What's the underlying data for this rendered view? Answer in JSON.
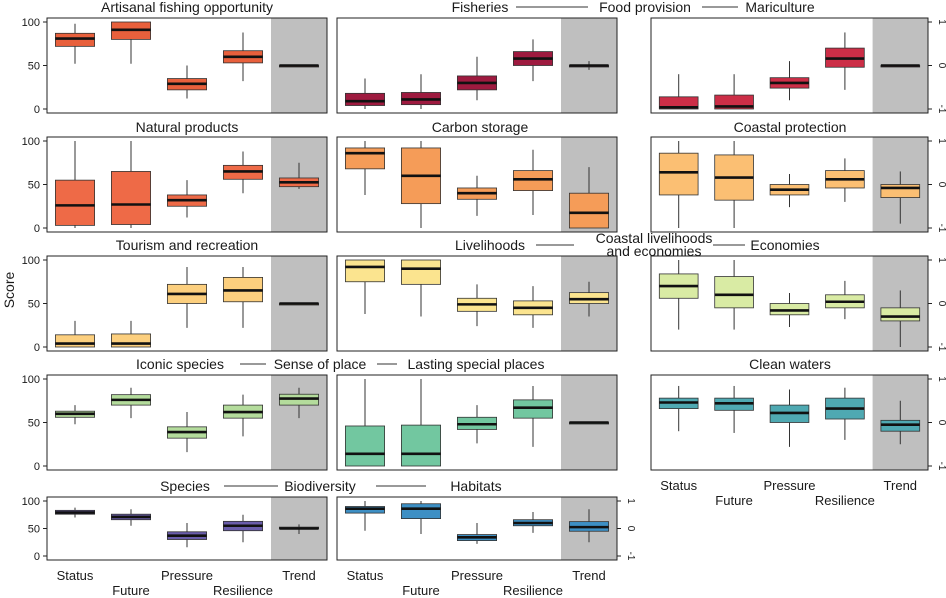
{
  "ylabel": "Score",
  "categories": [
    "Status",
    "Future",
    "Pressure",
    "Resilience",
    "Trend"
  ],
  "chart_data": [
    {
      "type": "box",
      "title": "Artisanal fishing opportunity",
      "color": "#e8603c",
      "ylim": [
        0,
        100
      ],
      "trend_ylim": [
        -1,
        1
      ],
      "boxes": [
        {
          "category": "Status",
          "min": 52,
          "q1": 72,
          "median": 81,
          "q3": 87,
          "max": 98
        },
        {
          "category": "Future",
          "min": 52,
          "q1": 80,
          "median": 91,
          "q3": 100,
          "max": 100
        },
        {
          "category": "Pressure",
          "min": 12,
          "q1": 22,
          "median": 29,
          "q3": 35,
          "max": 50
        },
        {
          "category": "Resilience",
          "min": 32,
          "q1": 53,
          "median": 60,
          "q3": 67,
          "max": 88
        },
        {
          "category": "Trend",
          "min": 0,
          "q1": 0,
          "median": 0,
          "q3": 0,
          "max": 0
        }
      ]
    },
    {
      "type": "box",
      "title": "Fisheries",
      "color": "#9e1a3f",
      "ylim": [
        0,
        100
      ],
      "trend_ylim": [
        -1,
        1
      ],
      "boxes": [
        {
          "category": "Status",
          "min": 0,
          "q1": 4,
          "median": 9,
          "q3": 18,
          "max": 35
        },
        {
          "category": "Future",
          "min": 0,
          "q1": 5,
          "median": 11,
          "q3": 19,
          "max": 40
        },
        {
          "category": "Pressure",
          "min": 10,
          "q1": 22,
          "median": 30,
          "q3": 38,
          "max": 60
        },
        {
          "category": "Resilience",
          "min": 32,
          "q1": 50,
          "median": 58,
          "q3": 66,
          "max": 80
        },
        {
          "category": "Trend",
          "min": -0.1,
          "q1": 0,
          "median": 0,
          "q3": 0,
          "max": 0.1
        }
      ]
    },
    {
      "type": "box",
      "title": "Mariculture",
      "color": "#cc2e47",
      "ylim": [
        0,
        100
      ],
      "trend_ylim": [
        -1,
        1
      ],
      "boxes": [
        {
          "category": "Status",
          "min": 0,
          "q1": 0,
          "median": 2,
          "q3": 14,
          "max": 40
        },
        {
          "category": "Future",
          "min": 0,
          "q1": 0,
          "median": 3,
          "q3": 16,
          "max": 40
        },
        {
          "category": "Pressure",
          "min": 10,
          "q1": 24,
          "median": 30,
          "q3": 36,
          "max": 55
        },
        {
          "category": "Resilience",
          "min": 22,
          "q1": 48,
          "median": 58,
          "q3": 70,
          "max": 88
        },
        {
          "category": "Trend",
          "min": 0,
          "q1": 0,
          "median": 0,
          "q3": 0,
          "max": 0
        }
      ]
    },
    {
      "type": "box",
      "title": "Natural products",
      "color": "#ee6a47",
      "ylim": [
        0,
        100
      ],
      "trend_ylim": [
        -1,
        1
      ],
      "boxes": [
        {
          "category": "Status",
          "min": 0,
          "q1": 3,
          "median": 26,
          "q3": 55,
          "max": 100
        },
        {
          "category": "Future",
          "min": 0,
          "q1": 4,
          "median": 27,
          "q3": 65,
          "max": 100
        },
        {
          "category": "Pressure",
          "min": 12,
          "q1": 25,
          "median": 32,
          "q3": 38,
          "max": 55
        },
        {
          "category": "Resilience",
          "min": 40,
          "q1": 56,
          "median": 65,
          "q3": 72,
          "max": 88
        },
        {
          "category": "Trend",
          "min": -0.1,
          "q1": -0.05,
          "median": 0.05,
          "q3": 0.15,
          "max": 0.5
        }
      ]
    },
    {
      "type": "box",
      "title": "Carbon storage",
      "color": "#f59c58",
      "ylim": [
        0,
        100
      ],
      "trend_ylim": [
        -1,
        1
      ],
      "boxes": [
        {
          "category": "Status",
          "min": 38,
          "q1": 68,
          "median": 86,
          "q3": 92,
          "max": 100
        },
        {
          "category": "Future",
          "min": 0,
          "q1": 28,
          "median": 60,
          "q3": 92,
          "max": 100
        },
        {
          "category": "Pressure",
          "min": 14,
          "q1": 33,
          "median": 40,
          "q3": 46,
          "max": 60
        },
        {
          "category": "Resilience",
          "min": 15,
          "q1": 43,
          "median": 56,
          "q3": 66,
          "max": 90
        },
        {
          "category": "Trend",
          "min": -1,
          "q1": -1,
          "median": -0.65,
          "q3": -0.2,
          "max": 0.4
        }
      ]
    },
    {
      "type": "box",
      "title": "Coastal protection",
      "color": "#fbbf73",
      "ylim": [
        0,
        100
      ],
      "trend_ylim": [
        -1,
        1
      ],
      "boxes": [
        {
          "category": "Status",
          "min": 0,
          "q1": 38,
          "median": 64,
          "q3": 86,
          "max": 100
        },
        {
          "category": "Future",
          "min": 0,
          "q1": 32,
          "median": 58,
          "q3": 84,
          "max": 100
        },
        {
          "category": "Pressure",
          "min": 24,
          "q1": 38,
          "median": 44,
          "q3": 50,
          "max": 62
        },
        {
          "category": "Resilience",
          "min": 30,
          "q1": 46,
          "median": 56,
          "q3": 66,
          "max": 80
        },
        {
          "category": "Trend",
          "min": -0.9,
          "q1": -0.3,
          "median": -0.08,
          "q3": 0,
          "max": 0.3
        }
      ]
    },
    {
      "type": "box",
      "title": "Tourism and recreation",
      "color": "#fccf7e",
      "ylim": [
        0,
        100
      ],
      "trend_ylim": [
        -1,
        1
      ],
      "boxes": [
        {
          "category": "Status",
          "min": 0,
          "q1": 0,
          "median": 4,
          "q3": 14,
          "max": 30
        },
        {
          "category": "Future",
          "min": 0,
          "q1": 0,
          "median": 4,
          "q3": 15,
          "max": 30
        },
        {
          "category": "Pressure",
          "min": 22,
          "q1": 50,
          "median": 61,
          "q3": 72,
          "max": 92
        },
        {
          "category": "Resilience",
          "min": 22,
          "q1": 52,
          "median": 65,
          "q3": 80,
          "max": 92
        },
        {
          "category": "Trend",
          "min": 0,
          "q1": 0,
          "median": 0,
          "q3": 0,
          "max": 0
        }
      ]
    },
    {
      "type": "box",
      "title": "Livelihoods",
      "color": "#fbe48f",
      "ylim": [
        0,
        100
      ],
      "trend_ylim": [
        -1,
        1
      ],
      "boxes": [
        {
          "category": "Status",
          "min": 38,
          "q1": 75,
          "median": 92,
          "q3": 100,
          "max": 100
        },
        {
          "category": "Future",
          "min": 35,
          "q1": 72,
          "median": 90,
          "q3": 100,
          "max": 100
        },
        {
          "category": "Pressure",
          "min": 24,
          "q1": 41,
          "median": 49,
          "q3": 56,
          "max": 72
        },
        {
          "category": "Resilience",
          "min": 22,
          "q1": 37,
          "median": 45,
          "q3": 53,
          "max": 70
        },
        {
          "category": "Trend",
          "min": -0.3,
          "q1": 0,
          "median": 0.1,
          "q3": 0.25,
          "max": 0.5
        }
      ]
    },
    {
      "type": "box",
      "title": "Economies",
      "color": "#d9eba4",
      "ylim": [
        0,
        100
      ],
      "trend_ylim": [
        -1,
        1
      ],
      "boxes": [
        {
          "category": "Status",
          "min": 20,
          "q1": 56,
          "median": 70,
          "q3": 84,
          "max": 100
        },
        {
          "category": "Future",
          "min": 20,
          "q1": 45,
          "median": 60,
          "q3": 81,
          "max": 100
        },
        {
          "category": "Pressure",
          "min": 23,
          "q1": 37,
          "median": 42,
          "q3": 50,
          "max": 62
        },
        {
          "category": "Resilience",
          "min": 32,
          "q1": 45,
          "median": 52,
          "q3": 60,
          "max": 76
        },
        {
          "category": "Trend",
          "min": -1,
          "q1": -0.4,
          "median": -0.3,
          "q3": -0.1,
          "max": 0.3
        }
      ]
    },
    {
      "type": "box",
      "title": "Iconic species",
      "color": "#b4dc9c",
      "ylim": [
        0,
        100
      ],
      "trend_ylim": [
        -1,
        1
      ],
      "boxes": [
        {
          "category": "Status",
          "min": 48,
          "q1": 56,
          "median": 60,
          "q3": 63,
          "max": 70
        },
        {
          "category": "Future",
          "min": 55,
          "q1": 70,
          "median": 76,
          "q3": 82,
          "max": 90
        },
        {
          "category": "Pressure",
          "min": 16,
          "q1": 32,
          "median": 39,
          "q3": 45,
          "max": 62
        },
        {
          "category": "Resilience",
          "min": 34,
          "q1": 55,
          "median": 62,
          "q3": 70,
          "max": 82
        },
        {
          "category": "Trend",
          "min": 0.1,
          "q1": 0.4,
          "median": 0.55,
          "q3": 0.65,
          "max": 0.8
        }
      ]
    },
    {
      "type": "box",
      "title": "Sense of place",
      "color": "#72c7a0",
      "ylim": [
        0,
        100
      ],
      "trend_ylim": [
        -1,
        1
      ],
      "boxes": [
        {
          "category": "Status",
          "min": 0,
          "q1": 0,
          "median": 14,
          "q3": 46,
          "max": 100
        },
        {
          "category": "Future",
          "min": 0,
          "q1": 0,
          "median": 14,
          "q3": 47,
          "max": 100
        },
        {
          "category": "Pressure",
          "min": 26,
          "q1": 42,
          "median": 48,
          "q3": 56,
          "max": 70
        },
        {
          "category": "Resilience",
          "min": 22,
          "q1": 55,
          "median": 67,
          "q3": 76,
          "max": 92
        },
        {
          "category": "Trend",
          "min": 0,
          "q1": 0,
          "median": 0,
          "q3": 0,
          "max": 0
        }
      ]
    },
    {
      "type": "box",
      "title": "Clean waters",
      "color": "#4fa9b2",
      "ylim": [
        0,
        100
      ],
      "trend_ylim": [
        -1,
        1
      ],
      "boxes": [
        {
          "category": "Status",
          "min": 40,
          "q1": 66,
          "median": 73,
          "q3": 78,
          "max": 92
        },
        {
          "category": "Future",
          "min": 38,
          "q1": 64,
          "median": 72,
          "q3": 78,
          "max": 92
        },
        {
          "category": "Pressure",
          "min": 22,
          "q1": 50,
          "median": 61,
          "q3": 70,
          "max": 88
        },
        {
          "category": "Resilience",
          "min": 30,
          "q1": 54,
          "median": 66,
          "q3": 78,
          "max": 90
        },
        {
          "category": "Trend",
          "min": -0.5,
          "q1": -0.2,
          "median": -0.05,
          "q3": 0.05,
          "max": 0.5
        }
      ]
    },
    {
      "type": "box",
      "title": "Species",
      "color": "#6a5dab",
      "ylim": [
        0,
        100
      ],
      "trend_ylim": [
        -1,
        1
      ],
      "boxes": [
        {
          "category": "Status",
          "min": 70,
          "q1": 76,
          "median": 79,
          "q3": 83,
          "max": 88
        },
        {
          "category": "Future",
          "min": 55,
          "q1": 66,
          "median": 71,
          "q3": 76,
          "max": 85
        },
        {
          "category": "Pressure",
          "min": 16,
          "q1": 30,
          "median": 37,
          "q3": 44,
          "max": 60
        },
        {
          "category": "Resilience",
          "min": 25,
          "q1": 46,
          "median": 55,
          "q3": 63,
          "max": 75
        },
        {
          "category": "Trend",
          "min": -0.2,
          "q1": 0,
          "median": 0,
          "q3": 0.05,
          "max": 0.15
        }
      ]
    },
    {
      "type": "box",
      "title": "Habitats",
      "color": "#3d8fc4",
      "ylim": [
        0,
        100
      ],
      "trend_ylim": [
        -1,
        1
      ],
      "boxes": [
        {
          "category": "Status",
          "min": 46,
          "q1": 78,
          "median": 86,
          "q3": 90,
          "max": 100
        },
        {
          "category": "Future",
          "min": 40,
          "q1": 68,
          "median": 86,
          "q3": 95,
          "max": 100
        },
        {
          "category": "Pressure",
          "min": 22,
          "q1": 28,
          "median": 34,
          "q3": 39,
          "max": 60
        },
        {
          "category": "Resilience",
          "min": 42,
          "q1": 55,
          "median": 60,
          "q3": 66,
          "max": 80
        },
        {
          "category": "Trend",
          "min": -0.5,
          "q1": -0.1,
          "median": 0.05,
          "q3": 0.25,
          "max": 0.7
        }
      ]
    }
  ],
  "group_labels": {
    "food_provision": "Food provision",
    "coastal_livelihoods": "Coastal livelihoods\nand economies",
    "sense_of_place": "Sense of place",
    "lasting_special_places": "Lasting special places",
    "biodiversity": "Biodiversity"
  },
  "y_ticks": [
    "0",
    "50",
    "100"
  ],
  "trend_ticks": [
    "-1",
    "0",
    "1"
  ],
  "colors": {
    "trend_bg": "#bfbfbf",
    "axis": "#222222",
    "median": "#111111"
  }
}
